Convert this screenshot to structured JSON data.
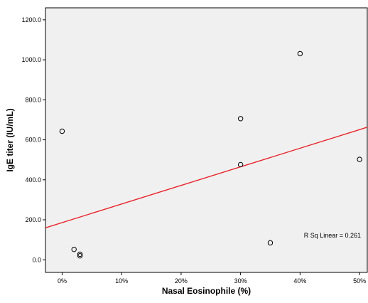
{
  "chart_data": {
    "type": "scatter",
    "title": "",
    "xlabel": "Nasal Eosinophile (%)",
    "ylabel": "IgE titer (IU/mL)",
    "xlim": [
      -2.8,
      51.3
    ],
    "ylim": [
      -63,
      1260
    ],
    "x_ticks": [
      0,
      10,
      20,
      30,
      40,
      50
    ],
    "x_tick_labels": [
      "0%",
      "10%",
      "20%",
      "30%",
      "40%",
      "50%"
    ],
    "y_ticks": [
      0,
      200,
      400,
      600,
      800,
      1000,
      1200
    ],
    "y_tick_labels": [
      "0.0",
      "200.0",
      "400.0",
      "600.0",
      "800.0",
      "1000.0",
      "1200.0"
    ],
    "grid": false,
    "plot_background": "#f0f0f0",
    "fit_line_color": "#e8262b",
    "series": [
      {
        "points": [
          {
            "x": 0,
            "y": 643
          },
          {
            "x": 2,
            "y": 52
          },
          {
            "x": 3,
            "y": 28
          },
          {
            "x": 3,
            "y": 20
          },
          {
            "x": 30,
            "y": 706
          },
          {
            "x": 30,
            "y": 476
          },
          {
            "x": 35,
            "y": 85
          },
          {
            "x": 40,
            "y": 1031
          },
          {
            "x": 50,
            "y": 502
          }
        ]
      }
    ],
    "fit_line": {
      "type": "linear",
      "intercept": 186,
      "slope": 9.3,
      "label": "R Sq Linear = 0.261"
    }
  }
}
